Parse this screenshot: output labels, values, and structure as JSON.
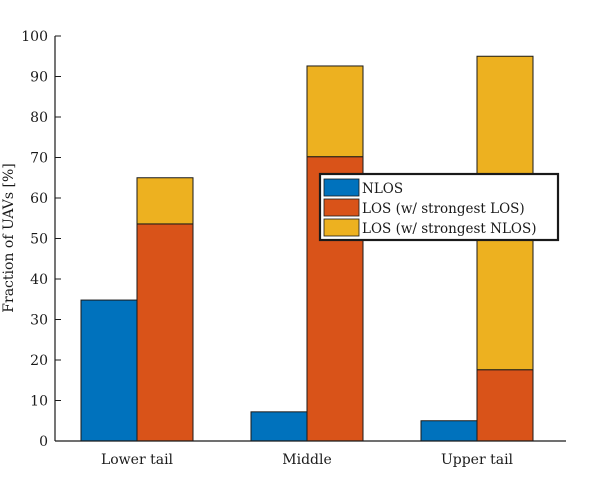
{
  "chart_data": {
    "type": "bar",
    "layout": "grouped-stacked",
    "categories": [
      "Lower tail",
      "Middle",
      "Upper tail"
    ],
    "ylabel": "Fraction of UAVs [%]",
    "xlabel": "",
    "ylim": [
      0,
      100
    ],
    "yticks": [
      0,
      10,
      20,
      30,
      40,
      50,
      60,
      70,
      80,
      90,
      100
    ],
    "grid": false,
    "legend_position": "center-right",
    "series": [
      {
        "name": "NLOS",
        "color": "#0072BD",
        "values": [
          34.8,
          7.2,
          5.0
        ],
        "stack": "nlos"
      },
      {
        "name": "LOS (w/ strongest LOS)",
        "color": "#D95319",
        "values": [
          53.6,
          70.2,
          17.6
        ],
        "stack": "los"
      },
      {
        "name": "LOS (w/ strongest NLOS)",
        "color": "#EDB120",
        "values": [
          11.4,
          22.4,
          77.4
        ],
        "stack": "los"
      }
    ]
  }
}
